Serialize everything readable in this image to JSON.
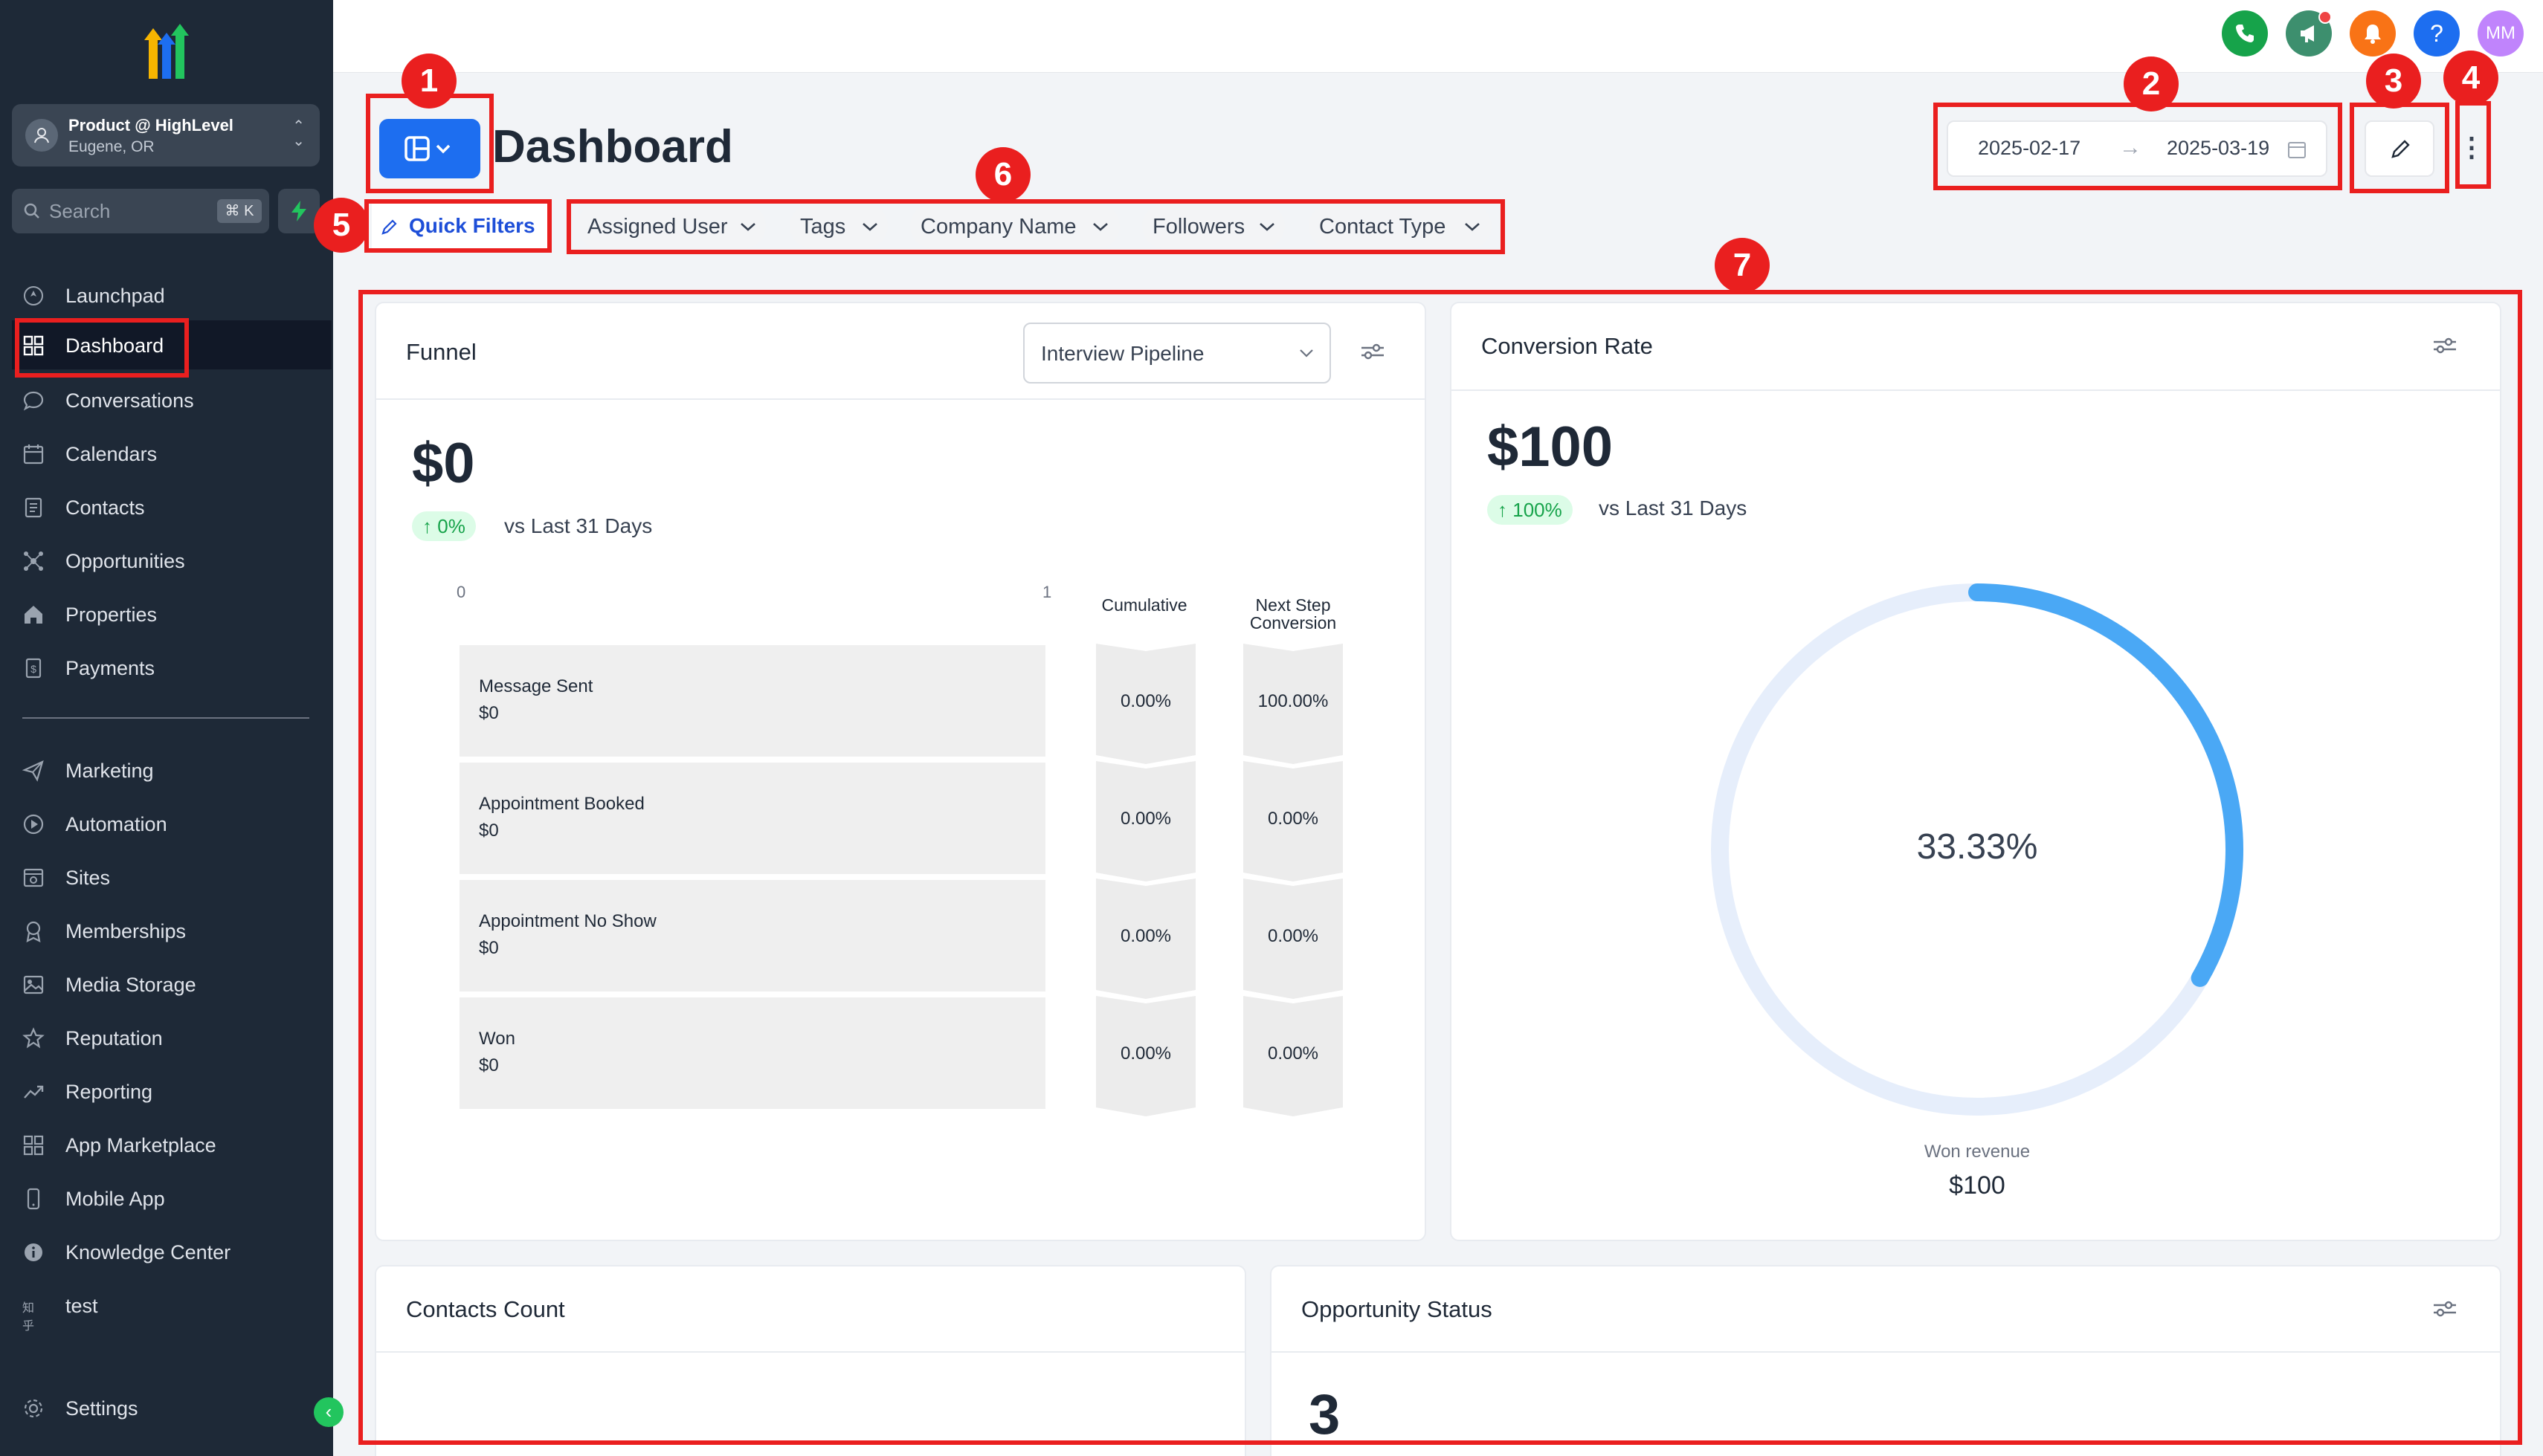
{
  "account": {
    "name": "Product @ HighLevel",
    "location": "Eugene, OR"
  },
  "search": {
    "placeholder": "Search",
    "shortcut": "⌘ K"
  },
  "nav": {
    "launchpad": "Launchpad",
    "dashboard": "Dashboard",
    "conversations": "Conversations",
    "calendars": "Calendars",
    "contacts": "Contacts",
    "opportunities": "Opportunities",
    "properties": "Properties",
    "payments": "Payments",
    "marketing": "Marketing",
    "automation": "Automation",
    "sites": "Sites",
    "memberships": "Memberships",
    "media_storage": "Media Storage",
    "reputation": "Reputation",
    "reporting": "Reporting",
    "app_marketplace": "App Marketplace",
    "mobile_app": "Mobile App",
    "knowledge_center": "Knowledge Center",
    "test": "test",
    "test_icon": "知乎",
    "settings": "Settings"
  },
  "topbar": {
    "avatar_initials": "MM",
    "help": "?"
  },
  "header": {
    "title": "Dashboard",
    "date_start": "2025-02-17",
    "date_end": "2025-03-19",
    "date_arrow": "→",
    "more": "⋮"
  },
  "filters": {
    "quick_filters": "Quick Filters",
    "chips": [
      "Assigned User",
      "Tags",
      "Company Name",
      "Followers",
      "Contact Type"
    ]
  },
  "annotations": [
    "1",
    "2",
    "3",
    "4",
    "5",
    "6",
    "7"
  ],
  "funnel": {
    "title": "Funnel",
    "pipeline": "Interview Pipeline",
    "value": "$0",
    "change": "0%",
    "vs": "vs Last 31 Days",
    "axis_min": "0",
    "axis_max": "1",
    "col_cumulative": "Cumulative",
    "col_next_step": "Next Step Conversion",
    "stages": [
      {
        "name": "Message Sent",
        "value": "$0",
        "cumulative": "0.00%",
        "next": "100.00%"
      },
      {
        "name": "Appointment Booked",
        "value": "$0",
        "cumulative": "0.00%",
        "next": "0.00%"
      },
      {
        "name": "Appointment No Show",
        "value": "$0",
        "cumulative": "0.00%",
        "next": "0.00%"
      },
      {
        "name": "Won",
        "value": "$0",
        "cumulative": "0.00%",
        "next": "0.00%"
      }
    ]
  },
  "conversion": {
    "title": "Conversion Rate",
    "value": "$100",
    "change": "100%",
    "vs": "vs Last 31 Days",
    "gauge_percent": 33.33,
    "gauge_label": "33.33%",
    "won_label": "Won revenue",
    "won_value": "$100",
    "accent": "#4aa8f5",
    "track": "#e6eefb"
  },
  "contacts_count": {
    "title": "Contacts Count"
  },
  "opportunity_status": {
    "title": "Opportunity Status",
    "value": "3"
  },
  "colors": {
    "sidebar": "#1e2937",
    "primary": "#1d6ef0",
    "annotation": "#ea1f1f"
  }
}
